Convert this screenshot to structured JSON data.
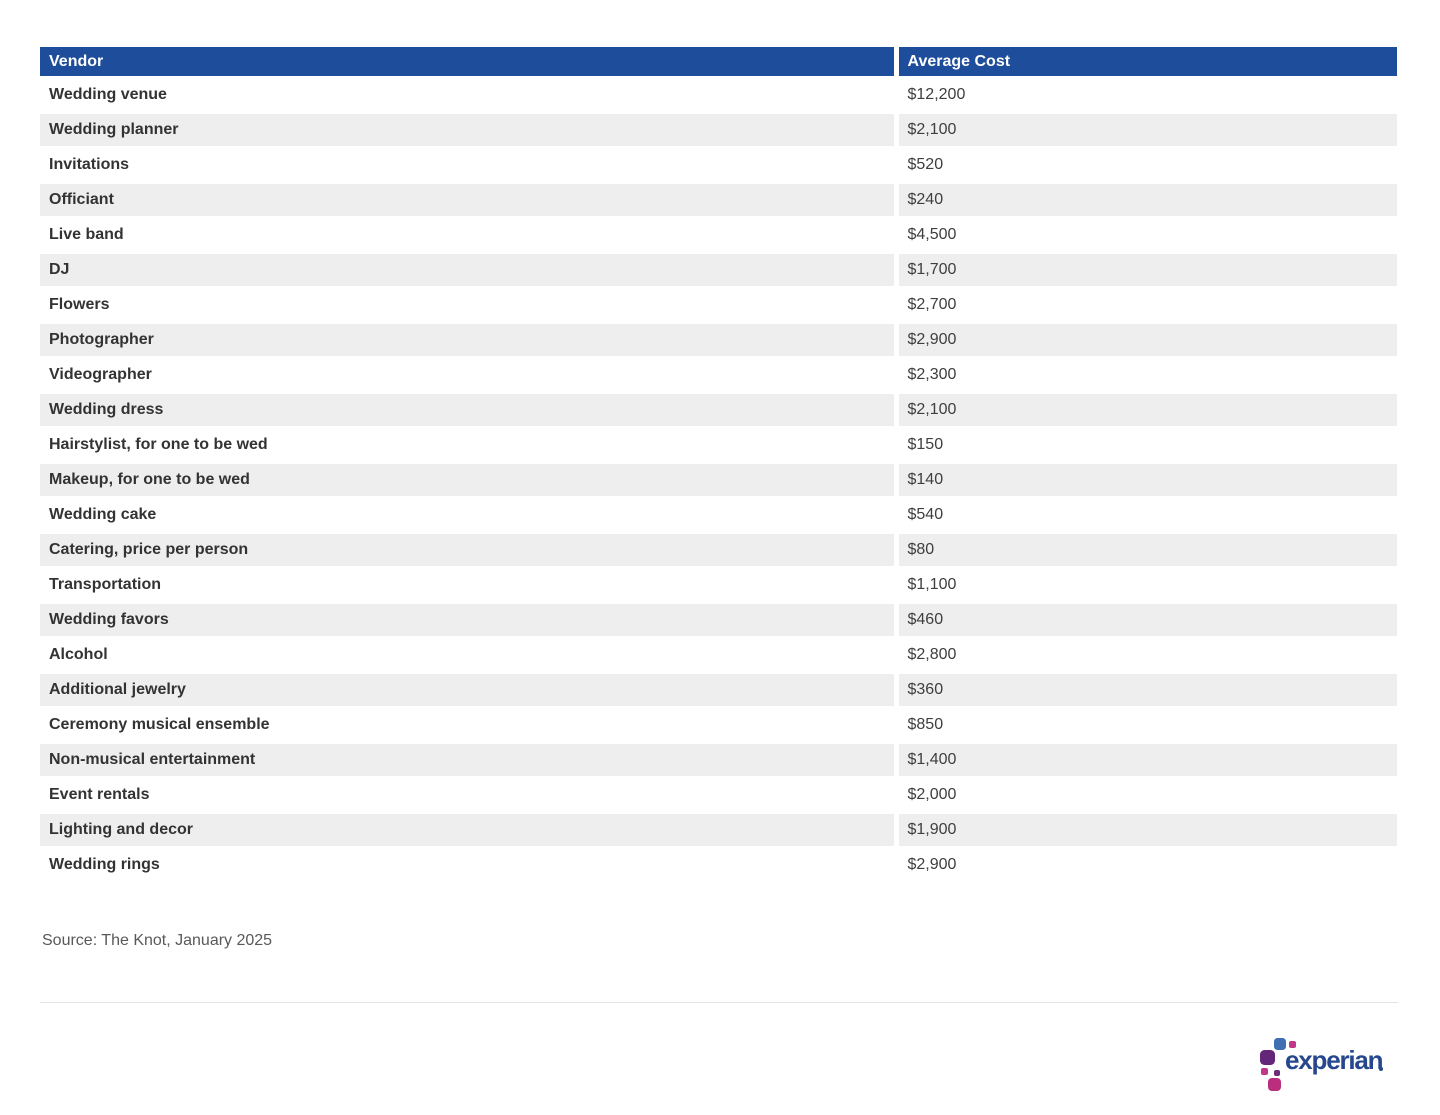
{
  "chart_data": {
    "type": "table",
    "columns": [
      "Vendor",
      "Average Cost"
    ],
    "rows": [
      [
        "Wedding venue",
        "$12,200"
      ],
      [
        "Wedding planner",
        "$2,100"
      ],
      [
        "Invitations",
        "$520"
      ],
      [
        "Officiant",
        "$240"
      ],
      [
        "Live band",
        "$4,500"
      ],
      [
        "DJ",
        "$1,700"
      ],
      [
        "Flowers",
        "$2,700"
      ],
      [
        "Photographer",
        "$2,900"
      ],
      [
        "Videographer",
        "$2,300"
      ],
      [
        "Wedding dress",
        "$2,100"
      ],
      [
        "Hairstylist, for one to be wed",
        "$150"
      ],
      [
        "Makeup, for one to be wed",
        "$140"
      ],
      [
        "Wedding cake",
        "$540"
      ],
      [
        "Catering, price per person",
        "$80"
      ],
      [
        "Transportation",
        "$1,100"
      ],
      [
        "Wedding favors",
        "$460"
      ],
      [
        "Alcohol",
        "$2,800"
      ],
      [
        "Additional jewelry",
        "$360"
      ],
      [
        "Ceremony musical ensemble",
        "$850"
      ],
      [
        "Non-musical entertainment",
        "$1,400"
      ],
      [
        "Event rentals",
        "$2,000"
      ],
      [
        "Lighting and decor",
        "$1,900"
      ],
      [
        "Wedding rings",
        "$2,900"
      ]
    ],
    "values_numeric": [
      12200,
      2100,
      520,
      240,
      4500,
      1700,
      2700,
      2900,
      2300,
      2100,
      150,
      140,
      540,
      80,
      1100,
      460,
      2800,
      360,
      850,
      1400,
      2000,
      1900,
      2900
    ],
    "source": "Source: The Knot, January 2025"
  },
  "table": {
    "columns": [
      "Vendor",
      "Average Cost"
    ],
    "rows": [
      {
        "vendor": "Wedding venue",
        "cost": "$12,200"
      },
      {
        "vendor": "Wedding planner",
        "cost": "$2,100"
      },
      {
        "vendor": "Invitations",
        "cost": "$520"
      },
      {
        "vendor": "Officiant",
        "cost": "$240"
      },
      {
        "vendor": "Live band",
        "cost": "$4,500"
      },
      {
        "vendor": "DJ",
        "cost": "$1,700"
      },
      {
        "vendor": "Flowers",
        "cost": "$2,700"
      },
      {
        "vendor": "Photographer",
        "cost": "$2,900"
      },
      {
        "vendor": "Videographer",
        "cost": "$2,300"
      },
      {
        "vendor": "Wedding dress",
        "cost": "$2,100"
      },
      {
        "vendor": "Hairstylist, for one to be wed",
        "cost": "$150"
      },
      {
        "vendor": "Makeup, for one to be wed",
        "cost": "$140"
      },
      {
        "vendor": "Wedding cake",
        "cost": "$540"
      },
      {
        "vendor": "Catering, price per person",
        "cost": "$80"
      },
      {
        "vendor": "Transportation",
        "cost": "$1,100"
      },
      {
        "vendor": "Wedding favors",
        "cost": "$460"
      },
      {
        "vendor": "Alcohol",
        "cost": "$2,800"
      },
      {
        "vendor": "Additional jewelry",
        "cost": "$360"
      },
      {
        "vendor": "Ceremony musical ensemble",
        "cost": "$850"
      },
      {
        "vendor": "Non-musical entertainment",
        "cost": "$1,400"
      },
      {
        "vendor": "Event rentals",
        "cost": "$2,000"
      },
      {
        "vendor": "Lighting and decor",
        "cost": "$1,900"
      },
      {
        "vendor": "Wedding rings",
        "cost": "$2,900"
      }
    ]
  },
  "source": "Source: The Knot, January 2025",
  "logo": {
    "brand": "experian"
  },
  "colors": {
    "header_bg": "#1e4e9b",
    "row_stripe": "#eeeeee",
    "wordmark_blue": "#26478d",
    "logo_sapphire": "#406eb3",
    "logo_purple": "#632678",
    "logo_magenta": "#ba2f7d",
    "logo_pink": "#c0388a"
  }
}
